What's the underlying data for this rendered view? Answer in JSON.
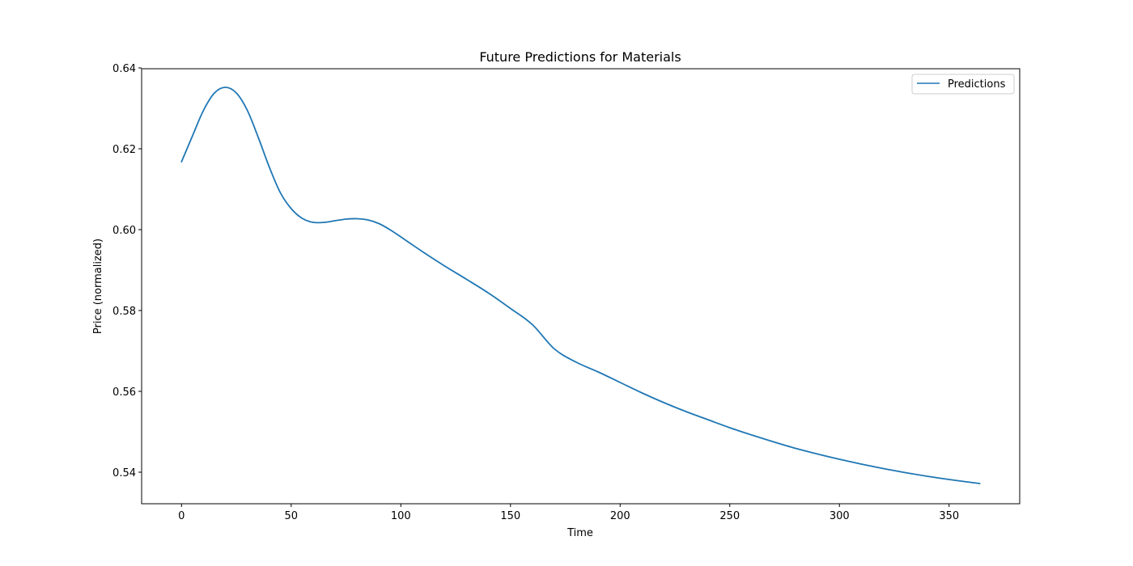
{
  "chart_data": {
    "type": "line",
    "title": "Future Predictions for Materials",
    "xlabel": "Time",
    "ylabel": "Price (normalized)",
    "xlim": [
      -18.2,
      382.2
    ],
    "ylim": [
      0.5322,
      0.6398
    ],
    "xticks": [
      0,
      50,
      100,
      150,
      200,
      250,
      300,
      350
    ],
    "xtick_labels": [
      "0",
      "50",
      "100",
      "150",
      "200",
      "250",
      "300",
      "350"
    ],
    "yticks": [
      0.54,
      0.56,
      0.58,
      0.6,
      0.62,
      0.64
    ],
    "ytick_labels": [
      "0.54",
      "0.56",
      "0.58",
      "0.60",
      "0.62",
      "0.64"
    ],
    "grid": false,
    "legend": {
      "position": "upper-right"
    },
    "series": [
      {
        "name": "Predictions",
        "color": "#1f77b4",
        "x": [
          0,
          5,
          10,
          15,
          20,
          25,
          30,
          35,
          40,
          45,
          50,
          55,
          60,
          65,
          70,
          75,
          80,
          85,
          90,
          95,
          100,
          110,
          120,
          130,
          140,
          150,
          160,
          170,
          180,
          190,
          200,
          210,
          220,
          230,
          240,
          250,
          260,
          270,
          280,
          290,
          300,
          310,
          320,
          330,
          340,
          350,
          364
        ],
        "y": [
          0.6168,
          0.6232,
          0.6295,
          0.6338,
          0.6352,
          0.6338,
          0.6295,
          0.6228,
          0.6155,
          0.6092,
          0.6052,
          0.6028,
          0.6018,
          0.6018,
          0.6022,
          0.6026,
          0.6027,
          0.6024,
          0.6015,
          0.6,
          0.5982,
          0.5945,
          0.591,
          0.5877,
          0.5843,
          0.5805,
          0.5765,
          0.5705,
          0.5672,
          0.5648,
          0.5622,
          0.5596,
          0.5572,
          0.555,
          0.553,
          0.551,
          0.5492,
          0.5475,
          0.5459,
          0.5445,
          0.5432,
          0.542,
          0.5409,
          0.5399,
          0.539,
          0.5382,
          0.5372
        ]
      }
    ]
  }
}
